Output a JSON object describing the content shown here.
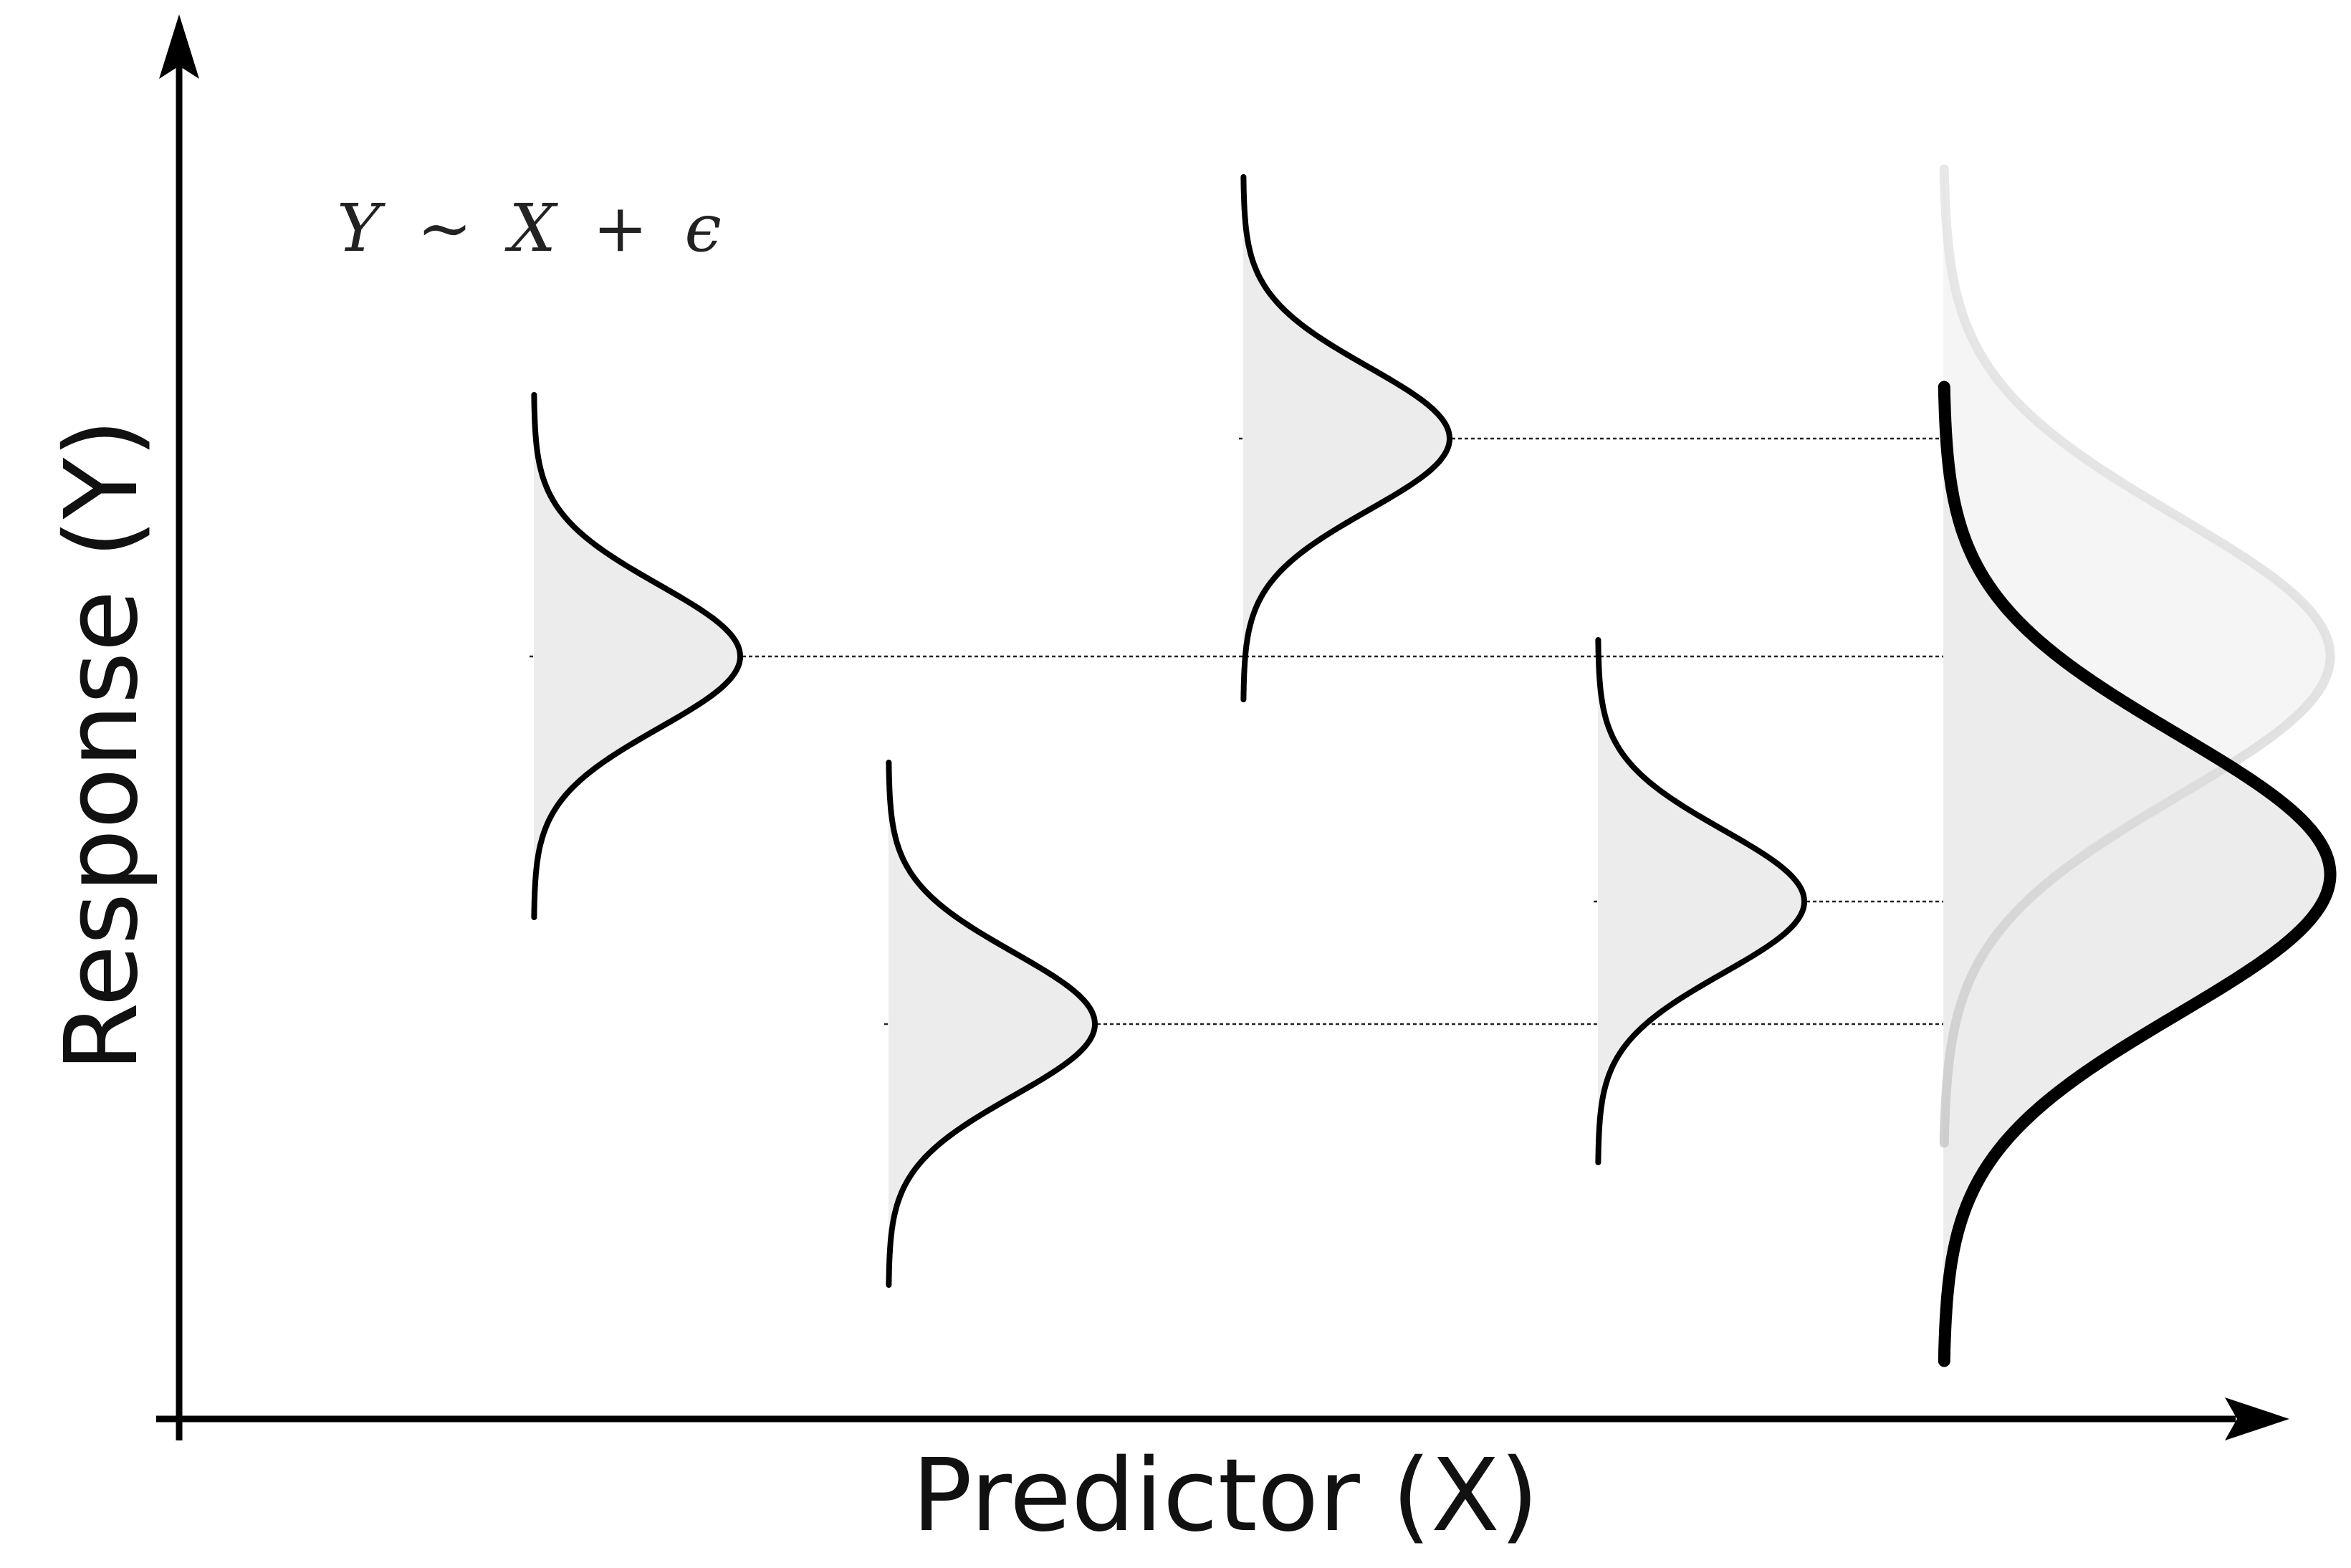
{
  "figure": {
    "x_axis_label": "Predictor (X)",
    "y_axis_label": "Response (Y)",
    "formula": {
      "lhs": "Y",
      "tilde": "∼",
      "var": "X",
      "plus": "+",
      "err": "ϵ"
    }
  },
  "distributions": [
    {
      "name": "conditional-distribution-1",
      "x": 1,
      "mean": 0.56
    },
    {
      "name": "conditional-distribution-2",
      "x": 2,
      "mean": 0.29
    },
    {
      "name": "conditional-distribution-3",
      "x": 3,
      "mean": 0.72
    },
    {
      "name": "conditional-distribution-4",
      "x": 4,
      "mean": 0.38
    }
  ],
  "marginal": {
    "mean_reference": 0.56,
    "mean_shifted": 0.4
  },
  "colors": {
    "ink": "#000000",
    "fill": "#ececec",
    "ghost": "#d9d9d9",
    "marginal_fill": "#f5f5f5"
  }
}
